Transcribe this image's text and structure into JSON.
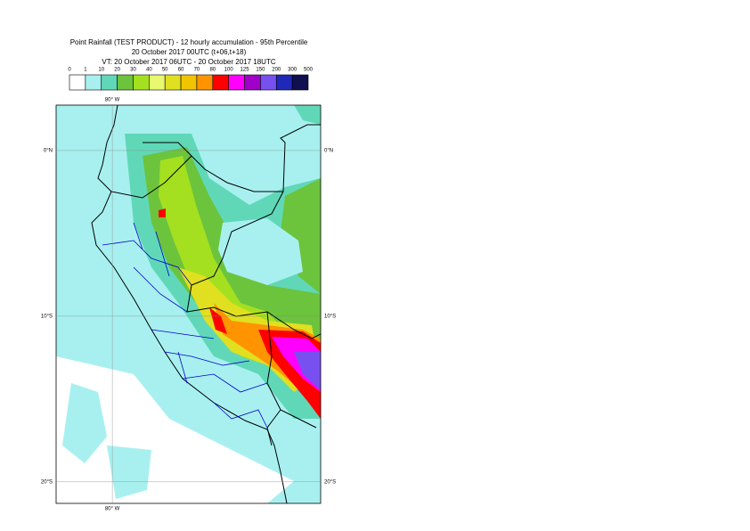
{
  "header": {
    "title": "Point Rainfall (TEST PRODUCT) - 12 hourly accumulation - 95th Percentile",
    "base_time": "20 October 2017 00UTC (t+06,t+18)",
    "valid_time": "VT: 20 October 2017 06UTC - 20 October 2017 18UTC"
  },
  "legend": {
    "levels": [
      0,
      1,
      10,
      20,
      30,
      40,
      50,
      60,
      70,
      80,
      100,
      125,
      150,
      200,
      300,
      500
    ],
    "colors": [
      "#ffffff",
      "#a8f0f0",
      "#60d8b8",
      "#6cc43c",
      "#a4e020",
      "#e8f870",
      "#e0e020",
      "#f0c400",
      "#ff9400",
      "#ff0000",
      "#ff00ff",
      "#a000c8",
      "#7850f0",
      "#2028b8",
      "#101050"
    ]
  },
  "map": {
    "lon_range": [
      -83.4,
      -67.4
    ],
    "lat_range": [
      2.74,
      -21.3
    ],
    "lon_ticks": [
      {
        "value": -80,
        "label": "80° W"
      }
    ],
    "lat_ticks": [
      {
        "value": 0,
        "label": "0°N"
      },
      {
        "value": -10,
        "label": "10°S"
      },
      {
        "value": -20,
        "label": "20°S"
      }
    ]
  }
}
